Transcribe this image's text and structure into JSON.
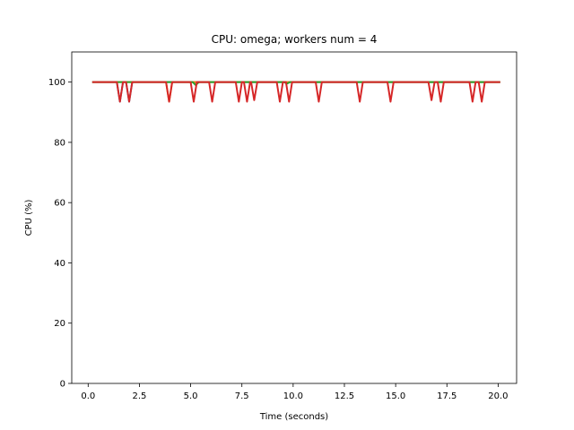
{
  "chart_data": {
    "type": "line",
    "title": "CPU: omega; workers num = 4",
    "xlabel": "Time (seconds)",
    "ylabel": "CPU (%)",
    "xlim": [
      -0.8,
      20.9
    ],
    "ylim": [
      0,
      110
    ],
    "x_ticks": [
      0.0,
      2.5,
      5.0,
      7.5,
      10.0,
      12.5,
      15.0,
      17.5,
      20.0
    ],
    "x_tick_labels": [
      "0.0",
      "2.5",
      "5.0",
      "7.5",
      "10.0",
      "12.5",
      "15.0",
      "17.5",
      "20.0"
    ],
    "y_ticks": [
      0,
      20,
      40,
      60,
      80,
      100
    ],
    "y_tick_labels": [
      "0",
      "20",
      "40",
      "60",
      "80",
      "100"
    ],
    "grid": false,
    "series": [
      {
        "color": "#1f77b4",
        "x": [
          0.2,
          1.4,
          1.55,
          1.7,
          1.85,
          2.0,
          2.15,
          20.1
        ],
        "y": [
          100,
          100,
          93.5,
          100,
          100,
          93.5,
          100,
          100
        ]
      },
      {
        "color": "#ff7f0e",
        "x": [
          0.2,
          3.8,
          3.95,
          4.1,
          20.1
        ],
        "y": [
          100,
          100,
          93.5,
          100,
          100
        ]
      },
      {
        "color": "#2ca02c",
        "x": [
          0.2,
          5.1,
          5.25,
          5.4,
          9.55,
          9.7,
          9.85,
          20.1
        ],
        "y": [
          100,
          100,
          99,
          100,
          100,
          99.5,
          100,
          100
        ]
      },
      {
        "color": "#d62728",
        "x": [
          0.2,
          1.4,
          1.55,
          1.7,
          1.85,
          2.0,
          2.15,
          3.8,
          3.95,
          4.1,
          5.0,
          5.15,
          5.3,
          5.9,
          6.05,
          6.2,
          7.2,
          7.35,
          7.5,
          7.6,
          7.75,
          7.9,
          7.95,
          8.1,
          8.25,
          9.2,
          9.35,
          9.5,
          9.65,
          9.8,
          9.95,
          11.1,
          11.25,
          11.4,
          13.1,
          13.25,
          13.4,
          14.6,
          14.75,
          14.9,
          16.6,
          16.75,
          16.9,
          17.05,
          17.2,
          17.35,
          18.6,
          18.75,
          18.9,
          19.05,
          19.2,
          19.35,
          20.1
        ],
        "y": [
          100,
          100,
          93.5,
          100,
          100,
          93.5,
          100,
          100,
          93.5,
          100,
          100,
          93.5,
          100,
          100,
          93.5,
          100,
          100,
          93.5,
          100,
          100,
          93.5,
          100,
          100,
          94,
          100,
          100,
          93.5,
          100,
          100,
          93.5,
          100,
          100,
          93.5,
          100,
          100,
          93.5,
          100,
          100,
          93.5,
          100,
          100,
          94,
          100,
          100,
          93.5,
          100,
          100,
          93.5,
          100,
          100,
          93.5,
          100,
          100
        ]
      }
    ]
  }
}
